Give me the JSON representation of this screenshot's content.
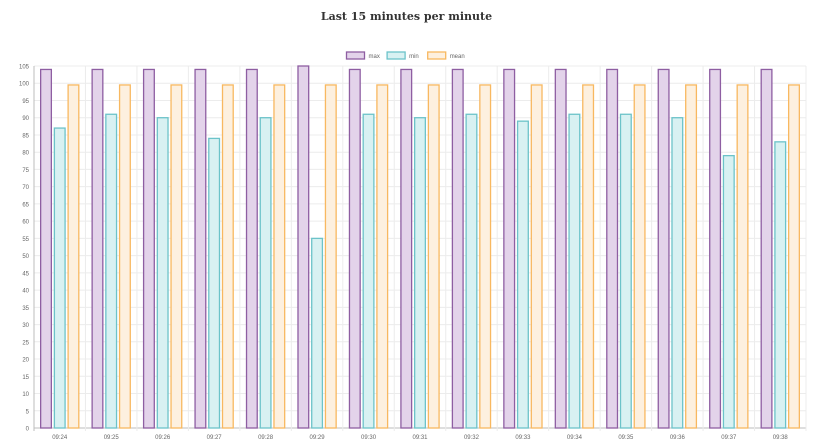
{
  "chart_data": {
    "type": "bar",
    "title": "Last 15 minutes per minute",
    "categories": [
      "09:24",
      "09:25",
      "09:26",
      "09:27",
      "09:28",
      "09:29",
      "09:30",
      "09:31",
      "09:32",
      "09:33",
      "09:34",
      "09:35",
      "09:36",
      "09:37",
      "09:38"
    ],
    "series": [
      {
        "name": "max",
        "color": "#8e5ea2",
        "fill": "#e3d3ea",
        "values": [
          104,
          104,
          104,
          104,
          104,
          105,
          104,
          104,
          104,
          104,
          104,
          104,
          104,
          104,
          104
        ]
      },
      {
        "name": "min",
        "color": "#6cc3c9",
        "fill": "#d8f1f2",
        "values": [
          87,
          91,
          90,
          84,
          90,
          55,
          91,
          90,
          91,
          89,
          91,
          91,
          90,
          79,
          83
        ]
      },
      {
        "name": "mean",
        "color": "#f8b860",
        "fill": "#fdf0df",
        "values": [
          99.5,
          99.5,
          99.5,
          99.5,
          99.5,
          99.5,
          99.5,
          99.5,
          99.5,
          99.5,
          99.5,
          99.5,
          99.5,
          99.5,
          99.5
        ]
      }
    ],
    "ylim": [
      0,
      105
    ],
    "ytick_step": 5,
    "grid": true,
    "legend": "top-center",
    "xlabel": "",
    "ylabel": ""
  }
}
